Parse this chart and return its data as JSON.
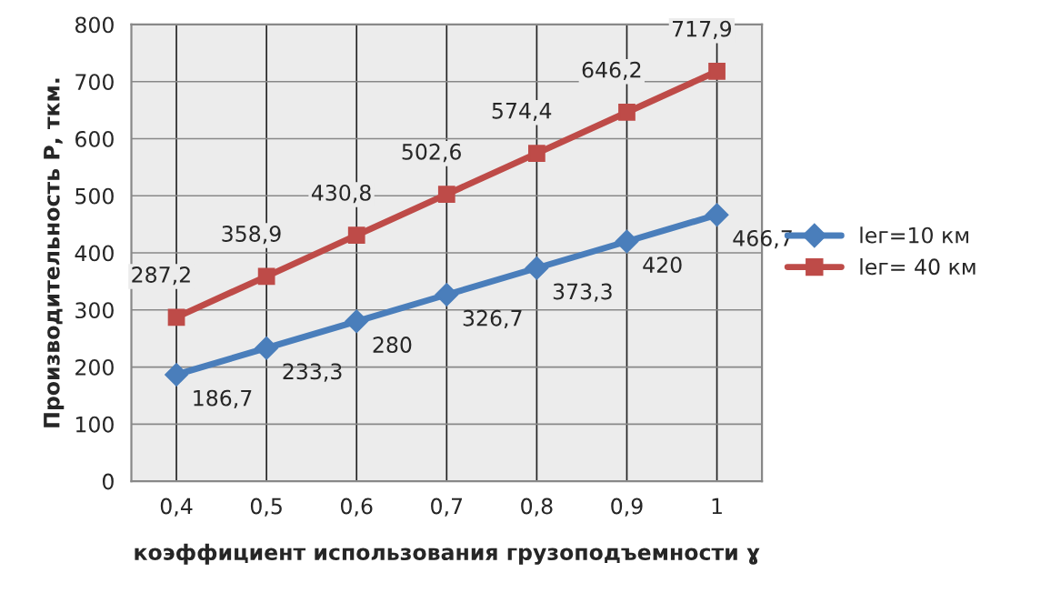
{
  "chart_data": {
    "type": "line",
    "xlabel": "коэффициент использования грузоподъемности ɣ",
    "ylabel": "Производительность Р, ткм.",
    "categories": [
      "0,4",
      "0,5",
      "0,6",
      "0,7",
      "0,8",
      "0,9",
      "1"
    ],
    "series": [
      {
        "name": "lег=10 км",
        "color": "#4a7ebb",
        "marker": "diamond",
        "values": [
          186.7,
          233.3,
          280,
          326.7,
          373.3,
          420,
          466.7
        ],
        "value_labels": [
          "186,7",
          "233,3",
          "280",
          "326,7",
          "373,3",
          "420",
          "466,7"
        ]
      },
      {
        "name": "lег= 40 км",
        "color": "#be4b48",
        "marker": "square",
        "values": [
          287.2,
          358.9,
          430.8,
          502.6,
          574.4,
          646.2,
          717.9
        ],
        "value_labels": [
          "287,2",
          "358,9",
          "430,8",
          "502,6",
          "574,4",
          "646,2",
          "717,9"
        ]
      }
    ],
    "ylim": [
      0,
      800
    ],
    "yticks": [
      0,
      100,
      200,
      300,
      400,
      500,
      600,
      700,
      800
    ],
    "grid": true,
    "legend": "right",
    "line_style": "solid"
  }
}
